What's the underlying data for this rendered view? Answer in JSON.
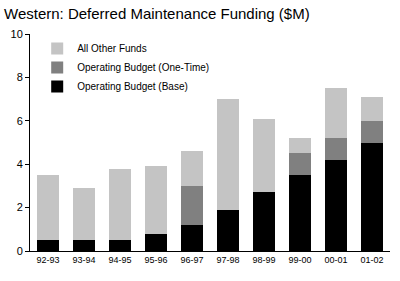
{
  "chart_data": {
    "type": "bar",
    "title": "Western: Deferred Maintenance Funding ($M)",
    "categories": [
      "92-93",
      "93-94",
      "94-95",
      "95-96",
      "96-97",
      "97-98",
      "98-99",
      "99-00",
      "00-01",
      "01-02"
    ],
    "series": [
      {
        "name": "Operating Budget (Base)",
        "color": "#000000",
        "values": [
          0.5,
          0.5,
          0.5,
          0.8,
          1.2,
          1.9,
          2.7,
          3.5,
          4.2,
          5.0
        ]
      },
      {
        "name": "Operating Budget (One-Time)",
        "color": "#808080",
        "values": [
          0,
          0,
          0,
          0,
          1.8,
          0,
          0,
          1.0,
          1.0,
          1.0
        ]
      },
      {
        "name": "All Other Funds",
        "color": "#c4c4c4",
        "values": [
          3.0,
          2.4,
          3.3,
          3.1,
          1.6,
          5.1,
          3.4,
          0.7,
          2.3,
          1.1
        ]
      }
    ],
    "stacked": true,
    "ylim": [
      0,
      10
    ],
    "yticks": [
      0,
      2,
      4,
      6,
      8,
      10
    ],
    "grid": false,
    "legend": "upper left"
  }
}
